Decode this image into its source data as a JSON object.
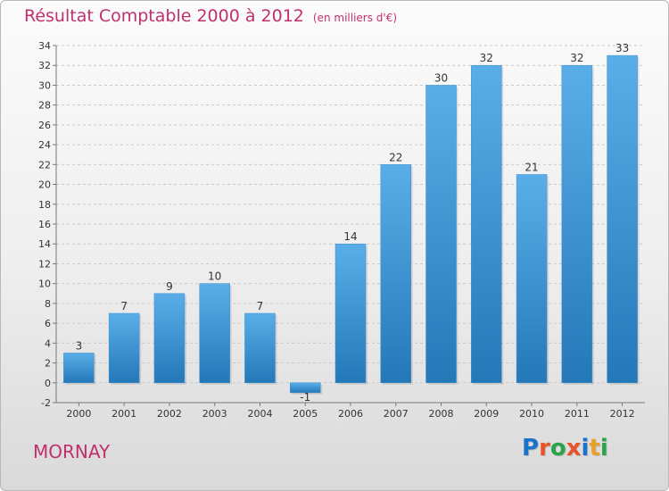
{
  "header": {
    "title": "Résultat Comptable 2000 à 2012",
    "subtitle": "(en milliers d'€)"
  },
  "footer": {
    "commune": "MORNAY",
    "logo_text": "Proxiti",
    "logo_colors": [
      "#1a73c9",
      "#e8542a",
      "#2aa34a",
      "#e8542a",
      "#1a73c9",
      "#e8a02a",
      "#2aa34a"
    ]
  },
  "colors": {
    "bar_light": "#5aaee8",
    "bar_dark": "#2478b8",
    "title": "#c0306e"
  },
  "chart_data": {
    "type": "bar",
    "title": "Résultat Comptable 2000 à 2012",
    "subtitle": "(en milliers d'€)",
    "xlabel": "",
    "ylabel": "",
    "categories": [
      "2000",
      "2001",
      "2002",
      "2003",
      "2004",
      "2005",
      "2006",
      "2007",
      "2008",
      "2009",
      "2010",
      "2011",
      "2012"
    ],
    "values": [
      3,
      7,
      9,
      10,
      7,
      -1,
      14,
      22,
      30,
      32,
      21,
      32,
      33
    ],
    "ylim": [
      -2,
      34
    ],
    "yticks": [
      -2,
      0,
      2,
      4,
      6,
      8,
      10,
      12,
      14,
      16,
      18,
      20,
      22,
      24,
      26,
      28,
      30,
      32,
      34
    ],
    "grid": "horizontal dashed"
  }
}
